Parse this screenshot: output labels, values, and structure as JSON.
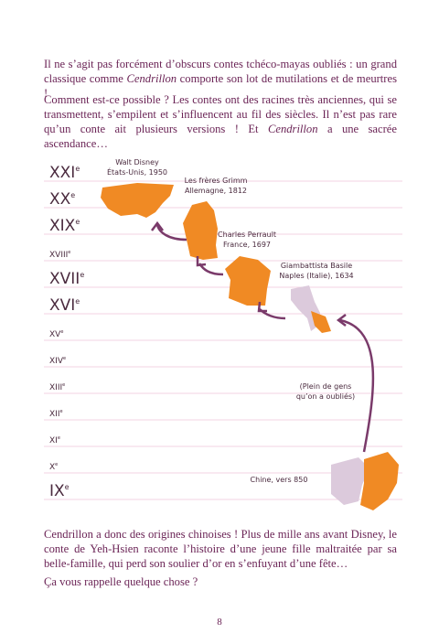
{
  "paragraphs": [
    {
      "parts": [
        "Il ne s’agit pas forcément d’obscurs contes tchéco-mayas oubliés : un grand classique comme ",
        "Cendrillon",
        " comporte son lot de mutilations et de meurtres !"
      ]
    },
    {
      "parts": [
        "Comment est-ce possible ? Les contes ont des racines très anciennes, qui se transmettent, s’empilent et s’influencent au fil des siècles. Il n’est pas rare qu’un conte ait plusieurs versions ! Et ",
        "Cendrillon",
        " a une sacrée ascendance…"
      ]
    }
  ],
  "timeline": {
    "centuries": [
      {
        "numeral": "XXI",
        "suffix": "e"
      },
      {
        "numeral": "XX",
        "suffix": "e"
      },
      {
        "numeral": "XIX",
        "suffix": "e"
      },
      {
        "numeral": "XVIII",
        "suffix": "e"
      },
      {
        "numeral": "XVII",
        "suffix": "e"
      },
      {
        "numeral": "XVI",
        "suffix": "e"
      },
      {
        "numeral": "XV",
        "suffix": "e"
      },
      {
        "numeral": "XIV",
        "suffix": "e"
      },
      {
        "numeral": "XIII",
        "suffix": "e"
      },
      {
        "numeral": "XII",
        "suffix": "e"
      },
      {
        "numeral": "XI",
        "suffix": "e"
      },
      {
        "numeral": "X",
        "suffix": "e"
      },
      {
        "numeral": "IX",
        "suffix": "e"
      }
    ],
    "versions": [
      {
        "author": "Walt Disney",
        "place": "États-Unis, 1950"
      },
      {
        "author": "Les frères Grimm",
        "place": "Allemagne, 1812"
      },
      {
        "author": "Charles Perrault",
        "place": "France, 1697"
      },
      {
        "author": "Giambattista Basile",
        "place": "Naples (Italie), 1634"
      },
      {
        "author": "(Plein de gens",
        "place": "qu’on a oubliés)"
      },
      {
        "author": "Chine, vers 850"
      }
    ]
  },
  "closing": [
    "Cendrillon a donc des origines chinoises ! Plus de mille ans avant Disney, le conte de Yeh-Hsien raconte l’histoire d’une jeune fille maltraitée par sa belle-famille, qui perd son soulier d’or en s’enfuyant d’une fête…",
    "Ça vous rappelle quelque chose ?"
  ],
  "page_number": "8"
}
